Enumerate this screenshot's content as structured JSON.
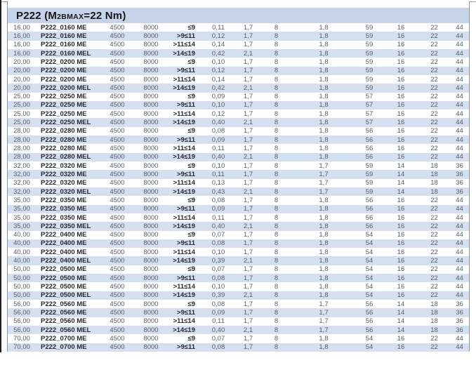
{
  "title": {
    "part1": "P222 (M",
    "subscript": "2BMAX",
    "part2": "=22 Nm)"
  },
  "colors": {
    "band_background": "#c7d3e8",
    "row_stripe": "#d4dff0",
    "bold_text": "#26292e",
    "regular_text": "#585d64",
    "frame_line": "#8d929a",
    "scan_edge": "#1e1e1e"
  },
  "table": {
    "rows": [
      [
        "16,00",
        "P222_0160 ME",
        "4500",
        "8000",
        "≤9",
        "0,11",
        "1,7",
        "8",
        "1,8",
        "59",
        "16",
        "22",
        "44"
      ],
      [
        "16,00",
        "P222_0160 ME",
        "4500",
        "8000",
        ">9≤11",
        "0,12",
        "1,7",
        "8",
        "1,8",
        "59",
        "16",
        "22",
        "44"
      ],
      [
        "16,00",
        "P222_0160 ME",
        "4500",
        "8000",
        ">11≤14",
        "0,14",
        "1,7",
        "8",
        "1,8",
        "59",
        "16",
        "22",
        "44"
      ],
      [
        "16,00",
        "P222_0160 MEL",
        "4500",
        "8000",
        ">14≤19",
        "0,42",
        "2,1",
        "8",
        "1,8",
        "59",
        "16",
        "22",
        "44"
      ],
      [
        "20,00",
        "P222_0200 ME",
        "4500",
        "8000",
        "≤9",
        "0,10",
        "1,7",
        "8",
        "1,8",
        "59",
        "16",
        "22",
        "44"
      ],
      [
        "20,00",
        "P222_0200 ME",
        "4500",
        "8000",
        ">9≤11",
        "0,12",
        "1,7",
        "8",
        "1,8",
        "59",
        "16",
        "22",
        "44"
      ],
      [
        "20,00",
        "P222_0200 ME",
        "4500",
        "8000",
        ">11≤14",
        "0,14",
        "1,7",
        "8",
        "1,8",
        "59",
        "16",
        "22",
        "44"
      ],
      [
        "20,00",
        "P222_0200 MEL",
        "4500",
        "8000",
        ">14≤19",
        "0,42",
        "2,1",
        "8",
        "1,8",
        "59",
        "16",
        "22",
        "44"
      ],
      [
        "25,00",
        "P222_0250 ME",
        "4500",
        "8000",
        "≤9",
        "0,09",
        "1,7",
        "8",
        "1,8",
        "57",
        "16",
        "22",
        "44"
      ],
      [
        "25,00",
        "P222_0250 ME",
        "4500",
        "8000",
        ">9≤11",
        "0,10",
        "1,7",
        "8",
        "1,8",
        "57",
        "16",
        "22",
        "44"
      ],
      [
        "25,00",
        "P222_0250 ME",
        "4500",
        "8000",
        ">11≤14",
        "0,12",
        "1,7",
        "8",
        "1,8",
        "57",
        "16",
        "22",
        "44"
      ],
      [
        "25,00",
        "P222_0250 MEL",
        "4500",
        "8000",
        ">14≤19",
        "0,40",
        "2,1",
        "8",
        "1,8",
        "57",
        "16",
        "22",
        "44"
      ],
      [
        "28,00",
        "P222_0280 ME",
        "4500",
        "8000",
        "≤9",
        "0,08",
        "1,7",
        "8",
        "1,8",
        "56",
        "16",
        "22",
        "44"
      ],
      [
        "28,00",
        "P222_0280 ME",
        "4500",
        "8000",
        ">9≤11",
        "0,09",
        "1,7",
        "8",
        "1,8",
        "56",
        "16",
        "22",
        "44"
      ],
      [
        "28,00",
        "P222_0280 ME",
        "4500",
        "8000",
        ">11≤14",
        "0,11",
        "1,7",
        "8",
        "1,8",
        "56",
        "16",
        "22",
        "44"
      ],
      [
        "28,00",
        "P222_0280 MEL",
        "4500",
        "8000",
        ">14≤19",
        "0,40",
        "2,1",
        "8",
        "1,8",
        "56",
        "16",
        "22",
        "44"
      ],
      [
        "32,00",
        "P222_0320 ME",
        "4500",
        "8000",
        "≤9",
        "0,10",
        "1,7",
        "8",
        "1,7",
        "59",
        "14",
        "18",
        "36"
      ],
      [
        "32,00",
        "P222_0320 ME",
        "4500",
        "8000",
        ">9≤11",
        "0,11",
        "1,7",
        "8",
        "1,7",
        "59",
        "14",
        "18",
        "36"
      ],
      [
        "32,00",
        "P222_0320 ME",
        "4500",
        "8000",
        ">11≤14",
        "0,13",
        "1,7",
        "8",
        "1,7",
        "59",
        "14",
        "18",
        "36"
      ],
      [
        "32,00",
        "P222_0320 MEL",
        "4500",
        "8000",
        ">14≤19",
        "0,43",
        "2,1",
        "8",
        "1,7",
        "59",
        "14",
        "18",
        "36"
      ],
      [
        "35,00",
        "P222_0350 ME",
        "4500",
        "8000",
        "≤9",
        "0,08",
        "1,7",
        "8",
        "1,8",
        "56",
        "16",
        "22",
        "44"
      ],
      [
        "35,00",
        "P222_0350 ME",
        "4500",
        "8000",
        ">9≤11",
        "0,09",
        "1,7",
        "8",
        "1,8",
        "56",
        "16",
        "22",
        "44"
      ],
      [
        "35,00",
        "P222_0350 ME",
        "4500",
        "8000",
        ">11≤14",
        "0,11",
        "1,7",
        "8",
        "1,8",
        "56",
        "16",
        "22",
        "44"
      ],
      [
        "35,00",
        "P222_0350 MEL",
        "4500",
        "8000",
        ">14≤19",
        "0,40",
        "2,1",
        "8",
        "1,8",
        "56",
        "16",
        "22",
        "44"
      ],
      [
        "40,00",
        "P222_0400 ME",
        "4500",
        "8000",
        "≤9",
        "0,07",
        "1,7",
        "8",
        "1,8",
        "54",
        "16",
        "22",
        "44"
      ],
      [
        "40,00",
        "P222_0400 ME",
        "4500",
        "8000",
        ">9≤11",
        "0,08",
        "1,7",
        "8",
        "1,8",
        "54",
        "16",
        "22",
        "44"
      ],
      [
        "40,00",
        "P222_0400 ME",
        "4500",
        "8000",
        ">11≤14",
        "0,10",
        "1,7",
        "8",
        "1,8",
        "54",
        "16",
        "22",
        "44"
      ],
      [
        "40,00",
        "P222_0400 MEL",
        "4500",
        "8000",
        ">14≤19",
        "0,39",
        "2,1",
        "8",
        "1,8",
        "54",
        "16",
        "22",
        "44"
      ],
      [
        "50,00",
        "P222_0500 ME",
        "4500",
        "8000",
        "≤9",
        "0,07",
        "1,7",
        "8",
        "1,8",
        "54",
        "16",
        "22",
        "44"
      ],
      [
        "50,00",
        "P222_0500 ME",
        "4500",
        "8000",
        ">9≤11",
        "0,08",
        "1,7",
        "8",
        "1,8",
        "54",
        "16",
        "22",
        "44"
      ],
      [
        "50,00",
        "P222_0500 ME",
        "4500",
        "8000",
        ">11≤14",
        "0,10",
        "1,7",
        "8",
        "1,8",
        "54",
        "16",
        "22",
        "44"
      ],
      [
        "50,00",
        "P222_0500 MEL",
        "4500",
        "8000",
        ">14≤19",
        "0,39",
        "2,1",
        "8",
        "1,8",
        "54",
        "16",
        "22",
        "44"
      ],
      [
        "56,00",
        "P222_0560 ME",
        "4500",
        "8000",
        "≤9",
        "0,08",
        "1,7",
        "8",
        "1,7",
        "56",
        "14",
        "18",
        "36"
      ],
      [
        "56,00",
        "P222_0560 ME",
        "4500",
        "8000",
        ">9≤11",
        "0,09",
        "1,7",
        "8",
        "1,7",
        "56",
        "14",
        "18",
        "36"
      ],
      [
        "56,00",
        "P222_0560 ME",
        "4500",
        "8000",
        ">11≤14",
        "0,11",
        "1,7",
        "8",
        "1,7",
        "56",
        "14",
        "18",
        "36"
      ],
      [
        "56,00",
        "P222_0560 MEL",
        "4500",
        "8000",
        ">14≤19",
        "0,40",
        "2,1",
        "8",
        "1,7",
        "56",
        "14",
        "18",
        "36"
      ],
      [
        "70,00",
        "P222_0700 ME",
        "4500",
        "8000",
        "≤9",
        "0,07",
        "1,7",
        "8",
        "1,8",
        "54",
        "16",
        "22",
        "44"
      ],
      [
        "70,00",
        "P222_0700 ME",
        "4500",
        "8000",
        ">9≤11",
        "0,08",
        "1,7",
        "8",
        "1,8",
        "54",
        "16",
        "22",
        "44"
      ]
    ]
  }
}
